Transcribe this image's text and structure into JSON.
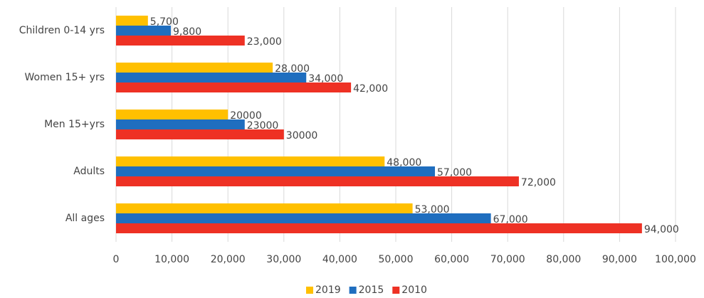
{
  "chart_data": {
    "type": "barh",
    "categories": [
      "Children 0-14 yrs",
      "Women 15+ yrs",
      "Men 15+yrs",
      "Adults",
      "All ages"
    ],
    "series": [
      {
        "name": "2019",
        "color": "#ffc000",
        "values": [
          5700,
          28000,
          20000,
          48000,
          53000
        ],
        "value_labels": [
          "5,700",
          "28,000",
          "20000",
          "48,000",
          "53,000"
        ]
      },
      {
        "name": "2015",
        "color": "#1f6ebf",
        "values": [
          9800,
          34000,
          23000,
          57000,
          67000
        ],
        "value_labels": [
          "9,800",
          "34,000",
          "23000",
          "57,000",
          "67,000"
        ]
      },
      {
        "name": "2010",
        "color": "#ee3124",
        "values": [
          23000,
          42000,
          30000,
          72000,
          94000
        ],
        "value_labels": [
          "23,000",
          "42,000",
          "30000",
          "72,000",
          "94,000"
        ]
      }
    ],
    "xlim": [
      0,
      100000
    ],
    "xticks": [
      0,
      {
        "value": 10000,
        "label": "10,000"
      },
      {
        "value": 20000,
        "label": "20,000"
      },
      {
        "value": 30000,
        "label": "30,000"
      },
      {
        "value": 40000,
        "label": "40,000"
      },
      {
        "value": 50000,
        "label": "50,000"
      },
      {
        "value": 60000,
        "label": "60,000"
      },
      {
        "value": 70000,
        "label": "70,000"
      },
      {
        "value": 80000,
        "label": "80,000"
      },
      {
        "value": 90000,
        "label": "90,000"
      },
      {
        "value": 100000,
        "label": "100,000"
      }
    ],
    "grid": true,
    "legend": "bottom"
  }
}
